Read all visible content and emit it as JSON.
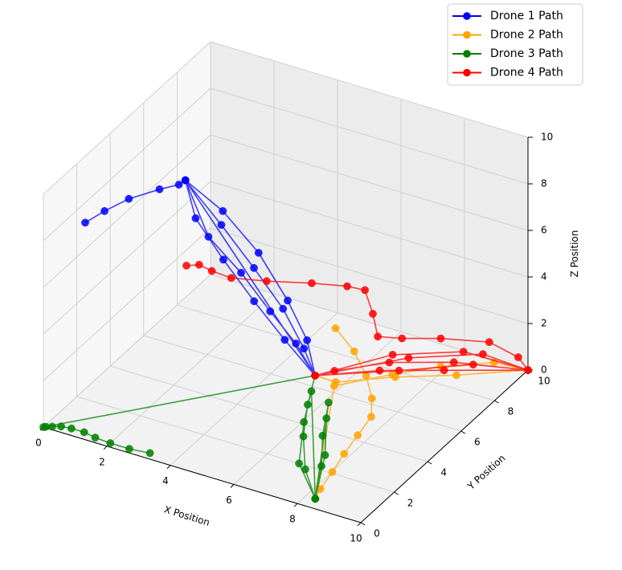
{
  "chart_data": {
    "type": "line",
    "projection": "3d",
    "markers": "circle",
    "xlabel": "X Position",
    "ylabel": "Y Position",
    "zlabel": "Z Position",
    "xlim": [
      0,
      10
    ],
    "ylim": [
      0,
      10
    ],
    "zlim": [
      0,
      10
    ],
    "x_ticks": [
      "0",
      "2",
      "4",
      "6",
      "8",
      "10"
    ],
    "y_ticks": [
      "0",
      "2",
      "4",
      "6",
      "8",
      "10"
    ],
    "z_ticks": [
      "0",
      "2",
      "4",
      "6",
      "8",
      "10"
    ],
    "grid": true,
    "legend_position": "top-right",
    "series": [
      {
        "name": "Drone 1 Path",
        "color": "#0000ff",
        "points": [
          [
            1.0,
            0.6,
            8.8
          ],
          [
            1.4,
            1.0,
            9.2
          ],
          [
            1.9,
            1.5,
            9.6
          ],
          [
            2.5,
            2.2,
            9.8
          ],
          [
            2.9,
            2.6,
            9.9
          ],
          [
            3.0,
            2.8,
            10.0
          ],
          [
            3.5,
            4.0,
            7.5
          ],
          [
            4.0,
            5.0,
            5.2
          ],
          [
            4.6,
            5.6,
            3.3
          ],
          [
            5.1,
            5.9,
            1.6
          ],
          [
            5.4,
            6.0,
            0.5
          ],
          [
            3.0,
            2.8,
            10.0
          ],
          [
            3.2,
            3.8,
            7.0
          ],
          [
            3.7,
            4.8,
            5.0
          ],
          [
            4.3,
            5.4,
            3.2
          ],
          [
            4.9,
            5.8,
            1.8
          ],
          [
            5.4,
            6.0,
            0.5
          ],
          [
            3.0,
            2.8,
            10.0
          ],
          [
            2.9,
            3.6,
            7.8
          ],
          [
            3.3,
            4.5,
            5.6
          ],
          [
            3.9,
            5.2,
            3.6
          ],
          [
            4.6,
            5.7,
            1.9
          ],
          [
            5.4,
            6.0,
            0.5
          ],
          [
            3.0,
            2.8,
            10.0
          ],
          [
            3.6,
            3.9,
            8.2
          ],
          [
            4.2,
            4.9,
            6.0
          ],
          [
            4.8,
            5.5,
            3.8
          ],
          [
            5.2,
            5.9,
            2.0
          ],
          [
            5.4,
            6.0,
            0.5
          ]
        ]
      },
      {
        "name": "Drone 2 Path",
        "color": "#ffa500",
        "points": [
          [
            5.2,
            7.6,
            1.4
          ],
          [
            6.0,
            7.2,
            1.0
          ],
          [
            6.8,
            6.4,
            0.8
          ],
          [
            7.4,
            5.6,
            0.6
          ],
          [
            7.8,
            4.8,
            0.5
          ],
          [
            7.9,
            3.8,
            0.4
          ],
          [
            8.0,
            2.8,
            0.3
          ],
          [
            8.1,
            1.9,
            0.15
          ],
          [
            8.2,
            1.0,
            0.05
          ],
          [
            8.3,
            0.5,
            0.0
          ],
          [
            6.0,
            6.0,
            0.3
          ],
          [
            7.2,
            7.2,
            0.5
          ],
          [
            8.2,
            8.2,
            0.6
          ],
          [
            9.3,
            9.3,
            0.5
          ],
          [
            10.0,
            10.0,
            0.0
          ],
          [
            8.8,
            8.0,
            0.6
          ],
          [
            7.4,
            7.0,
            0.6
          ],
          [
            6.0,
            6.1,
            0.4
          ],
          [
            5.4,
            6.0,
            0.5
          ]
        ]
      },
      {
        "name": "Drone 3 Path",
        "color": "#008000",
        "points": [
          [
            3.2,
            0.3,
            0.0
          ],
          [
            2.6,
            0.2,
            0.0
          ],
          [
            2.0,
            0.2,
            0.0
          ],
          [
            1.5,
            0.25,
            0.0
          ],
          [
            1.1,
            0.35,
            0.0
          ],
          [
            0.7,
            0.35,
            0.0
          ],
          [
            0.4,
            0.3,
            0.0
          ],
          [
            0.2,
            0.15,
            0.0
          ],
          [
            0.05,
            0.05,
            0.0
          ],
          [
            0.0,
            0.0,
            0.0
          ],
          [
            5.4,
            6.0,
            0.5
          ],
          [
            5.8,
            4.8,
            0.2
          ],
          [
            6.4,
            3.4,
            0.0
          ],
          [
            7.3,
            1.8,
            0.0
          ],
          [
            8.3,
            0.5,
            0.0
          ],
          [
            6.3,
            5.1,
            0.3
          ],
          [
            6.9,
            3.6,
            0.1
          ],
          [
            7.6,
            2.2,
            0.0
          ],
          [
            8.3,
            0.5,
            0.0
          ],
          [
            5.6,
            5.4,
            0.3
          ],
          [
            6.1,
            4.0,
            0.1
          ],
          [
            7.0,
            2.0,
            0.0
          ],
          [
            8.3,
            0.5,
            0.0
          ],
          [
            6.6,
            4.4,
            0.2
          ],
          [
            7.4,
            2.8,
            0.0
          ],
          [
            8.3,
            0.5,
            0.0
          ]
        ]
      },
      {
        "name": "Drone 4 Path",
        "color": "#ff0000",
        "points": [
          [
            2.4,
            4.0,
            5.3
          ],
          [
            2.8,
            4.0,
            5.5
          ],
          [
            3.2,
            4.0,
            5.4
          ],
          [
            3.6,
            4.4,
            5.0
          ],
          [
            4.4,
            5.0,
            4.8
          ],
          [
            5.4,
            5.8,
            4.6
          ],
          [
            6.2,
            6.4,
            4.4
          ],
          [
            6.6,
            6.7,
            4.2
          ],
          [
            6.8,
            6.8,
            3.2
          ],
          [
            6.9,
            6.9,
            2.2
          ],
          [
            7.4,
            7.4,
            2.0
          ],
          [
            8.2,
            8.2,
            1.8
          ],
          [
            9.2,
            9.2,
            1.4
          ],
          [
            9.8,
            9.8,
            0.6
          ],
          [
            10.0,
            10.0,
            0.0
          ],
          [
            8.4,
            8.6,
            0.6
          ],
          [
            7.0,
            7.4,
            0.8
          ],
          [
            5.8,
            6.4,
            0.6
          ],
          [
            5.4,
            6.0,
            0.5
          ],
          [
            7.0,
            7.6,
            1.0
          ],
          [
            8.6,
            8.8,
            1.0
          ],
          [
            10.0,
            10.0,
            0.0
          ],
          [
            8.2,
            8.4,
            0.3
          ],
          [
            6.8,
            7.2,
            0.5
          ],
          [
            5.4,
            6.0,
            0.5
          ],
          [
            7.4,
            7.8,
            0.9
          ],
          [
            9.0,
            9.2,
            0.8
          ],
          [
            10.0,
            10.0,
            0.0
          ],
          [
            8.8,
            9.0,
            0.4
          ],
          [
            7.2,
            7.6,
            0.4
          ],
          [
            5.4,
            6.0,
            0.5
          ]
        ]
      }
    ]
  }
}
